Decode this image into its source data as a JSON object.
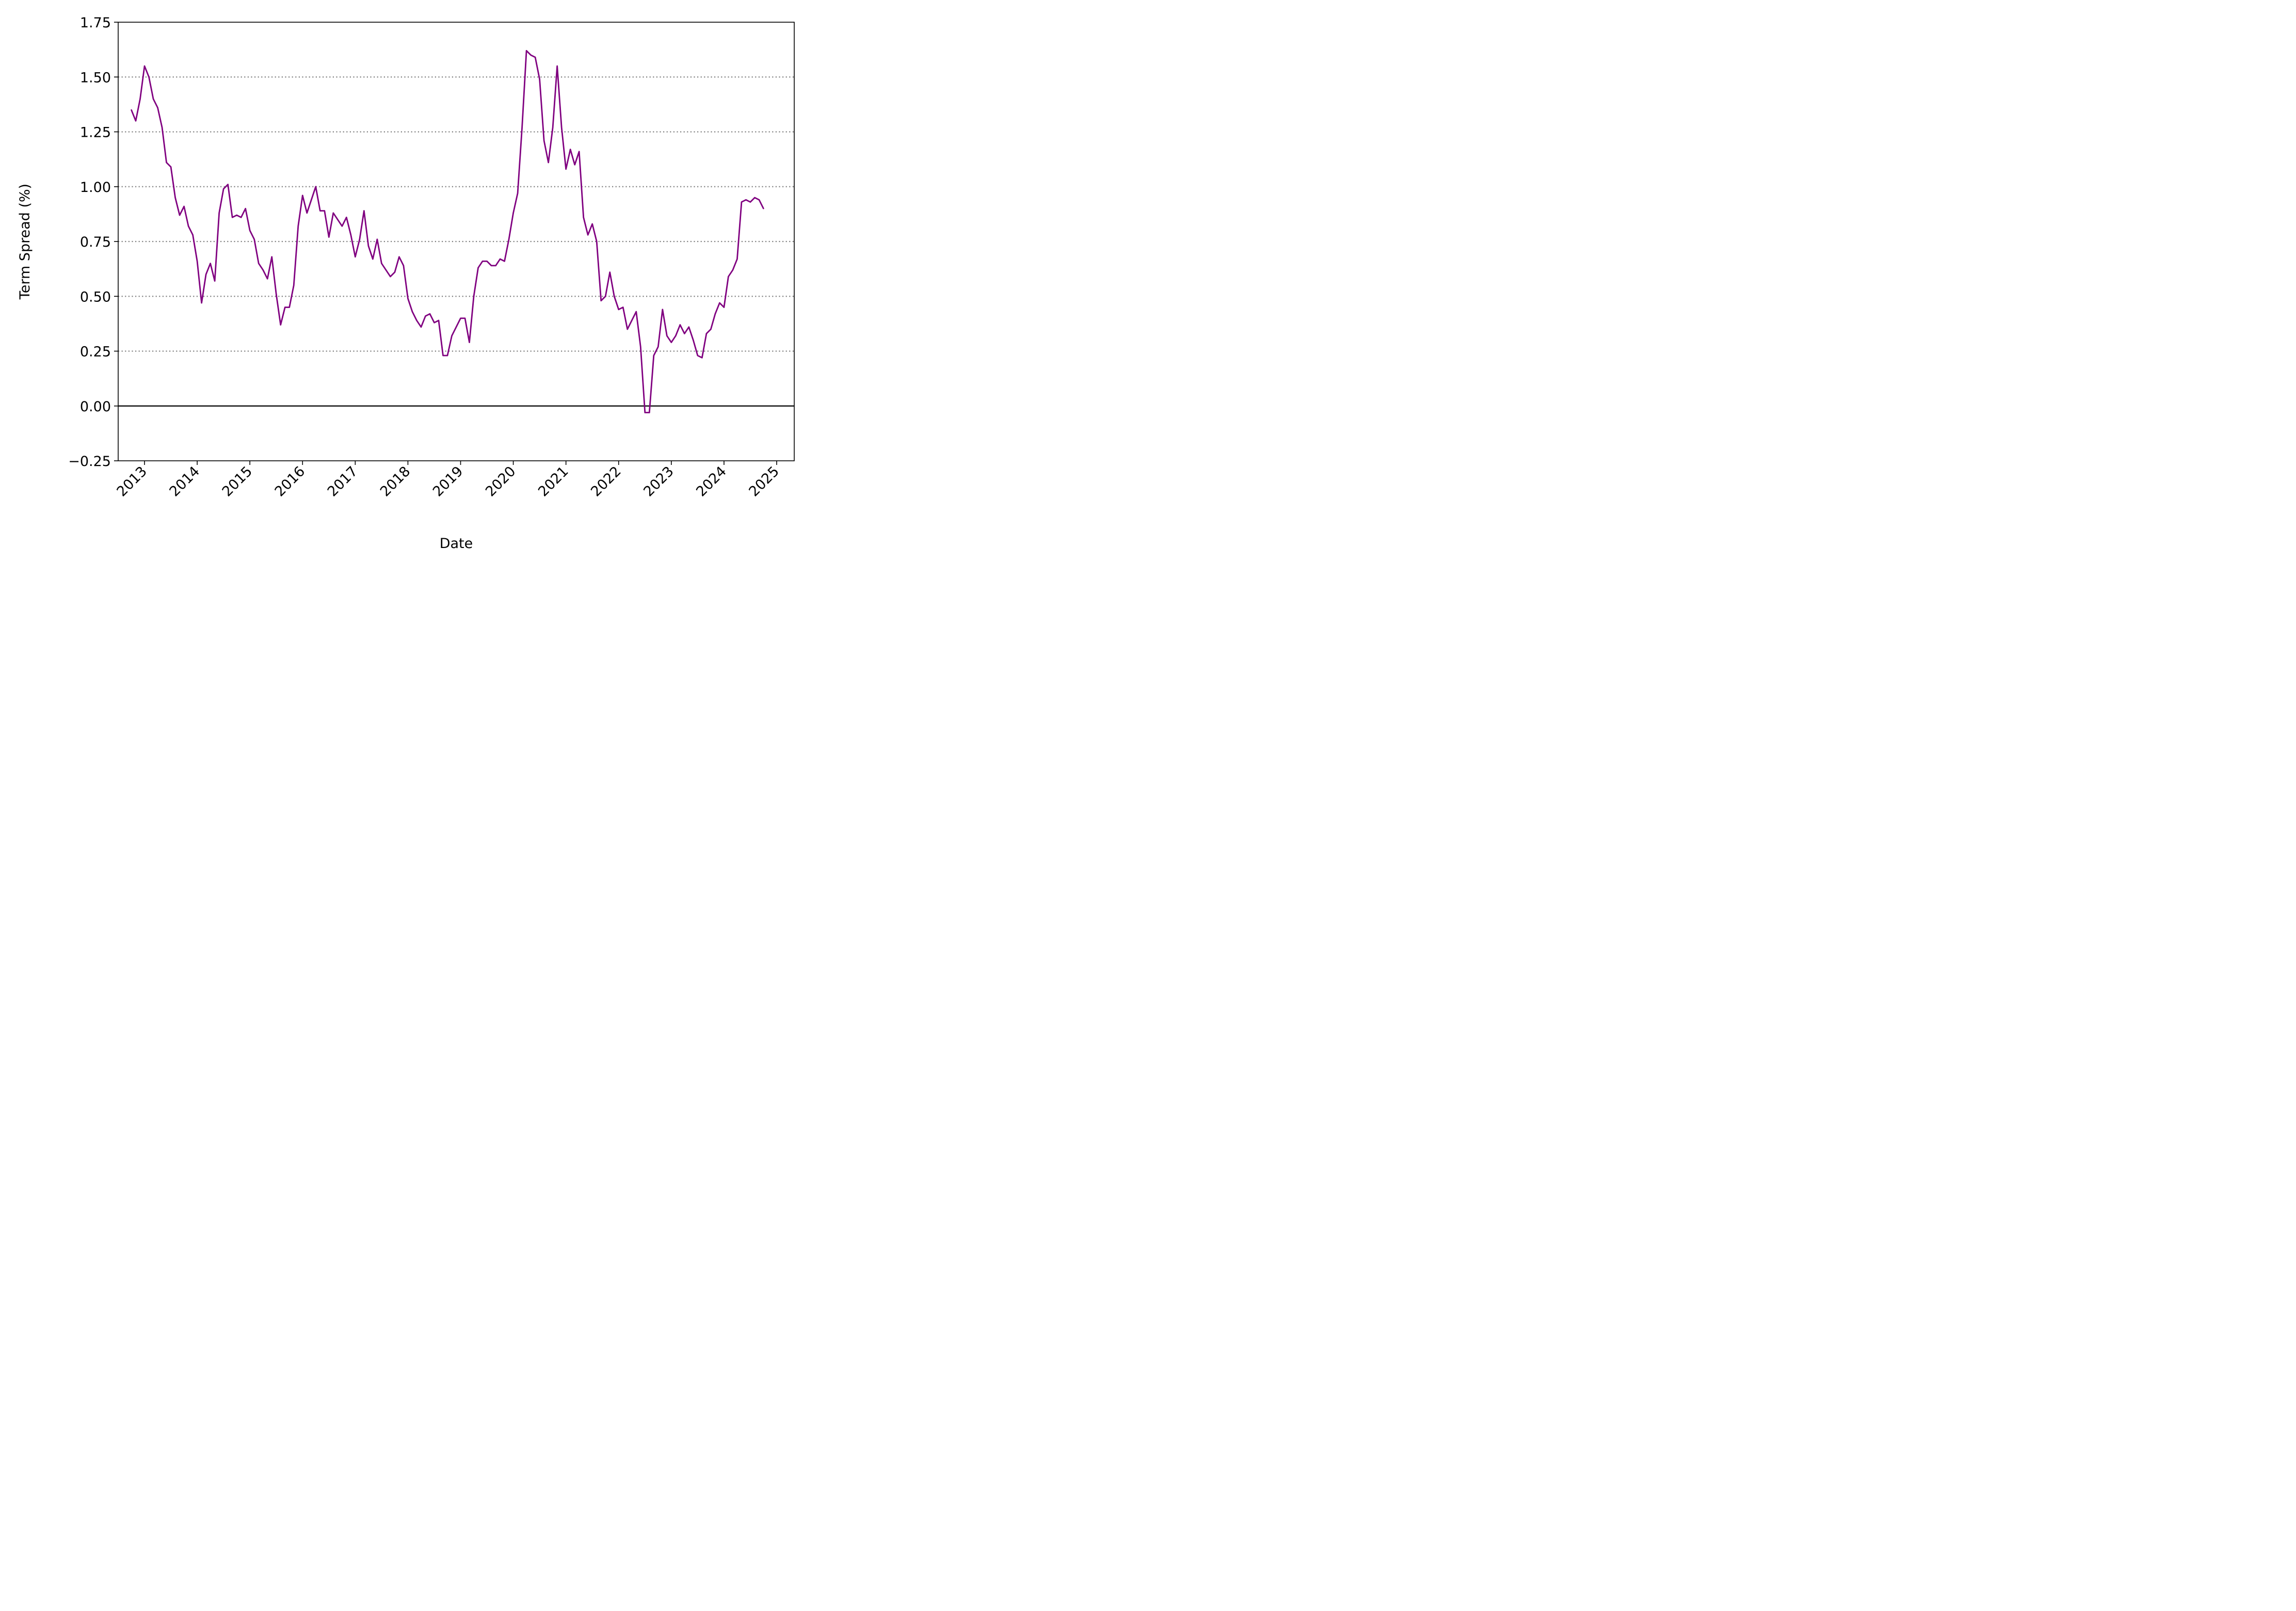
{
  "chart_data": {
    "type": "line",
    "title": "",
    "xlabel": "Date",
    "ylabel": "Term Spread (%)",
    "x_ticks": [
      "2013",
      "2014",
      "2015",
      "2016",
      "2017",
      "2018",
      "2019",
      "2020",
      "2021",
      "2022",
      "2023",
      "2024",
      "2025"
    ],
    "y_ticks": [
      "−0.25",
      "0.00",
      "0.25",
      "0.50",
      "0.75",
      "1.00",
      "1.25",
      "1.50",
      "1.75"
    ],
    "xlim": [
      "2012-07",
      "2025-05"
    ],
    "ylim": [
      -0.25,
      1.75
    ],
    "grid": "horizontal dotted",
    "reference_line": 0,
    "series": [
      {
        "color": "#800080",
        "points": [
          [
            "2012-10",
            1.35
          ],
          [
            "2012-11",
            1.3
          ],
          [
            "2012-12",
            1.4
          ],
          [
            "2013-01",
            1.55
          ],
          [
            "2013-02",
            1.5
          ],
          [
            "2013-03",
            1.4
          ],
          [
            "2013-04",
            1.36
          ],
          [
            "2013-05",
            1.27
          ],
          [
            "2013-06",
            1.11
          ],
          [
            "2013-07",
            1.09
          ],
          [
            "2013-08",
            0.95
          ],
          [
            "2013-09",
            0.87
          ],
          [
            "2013-10",
            0.91
          ],
          [
            "2013-11",
            0.82
          ],
          [
            "2013-12",
            0.78
          ],
          [
            "2014-01",
            0.66
          ],
          [
            "2014-02",
            0.47
          ],
          [
            "2014-03",
            0.6
          ],
          [
            "2014-04",
            0.65
          ],
          [
            "2014-05",
            0.57
          ],
          [
            "2014-06",
            0.88
          ],
          [
            "2014-07",
            0.99
          ],
          [
            "2014-08",
            1.01
          ],
          [
            "2014-09",
            0.86
          ],
          [
            "2014-10",
            0.87
          ],
          [
            "2014-11",
            0.86
          ],
          [
            "2014-12",
            0.9
          ],
          [
            "2015-01",
            0.8
          ],
          [
            "2015-02",
            0.76
          ],
          [
            "2015-03",
            0.65
          ],
          [
            "2015-04",
            0.62
          ],
          [
            "2015-05",
            0.58
          ],
          [
            "2015-06",
            0.68
          ],
          [
            "2015-07",
            0.51
          ],
          [
            "2015-08",
            0.37
          ],
          [
            "2015-09",
            0.45
          ],
          [
            "2015-10",
            0.45
          ],
          [
            "2015-11",
            0.55
          ],
          [
            "2015-12",
            0.82
          ],
          [
            "2016-01",
            0.96
          ],
          [
            "2016-02",
            0.88
          ],
          [
            "2016-03",
            0.94
          ],
          [
            "2016-04",
            1.0
          ],
          [
            "2016-05",
            0.89
          ],
          [
            "2016-06",
            0.89
          ],
          [
            "2016-07",
            0.77
          ],
          [
            "2016-08",
            0.88
          ],
          [
            "2016-09",
            0.85
          ],
          [
            "2016-10",
            0.82
          ],
          [
            "2016-11",
            0.86
          ],
          [
            "2016-12",
            0.78
          ],
          [
            "2017-01",
            0.68
          ],
          [
            "2017-02",
            0.76
          ],
          [
            "2017-03",
            0.89
          ],
          [
            "2017-04",
            0.73
          ],
          [
            "2017-05",
            0.67
          ],
          [
            "2017-06",
            0.76
          ],
          [
            "2017-07",
            0.65
          ],
          [
            "2017-08",
            0.62
          ],
          [
            "2017-09",
            0.59
          ],
          [
            "2017-10",
            0.61
          ],
          [
            "2017-11",
            0.68
          ],
          [
            "2017-12",
            0.64
          ],
          [
            "2018-01",
            0.49
          ],
          [
            "2018-02",
            0.43
          ],
          [
            "2018-03",
            0.39
          ],
          [
            "2018-04",
            0.36
          ],
          [
            "2018-05",
            0.41
          ],
          [
            "2018-06",
            0.42
          ],
          [
            "2018-07",
            0.38
          ],
          [
            "2018-08",
            0.39
          ],
          [
            "2018-09",
            0.23
          ],
          [
            "2018-10",
            0.23
          ],
          [
            "2018-11",
            0.32
          ],
          [
            "2018-12",
            0.36
          ],
          [
            "2019-01",
            0.4
          ],
          [
            "2019-02",
            0.4
          ],
          [
            "2019-03",
            0.29
          ],
          [
            "2019-04",
            0.5
          ],
          [
            "2019-05",
            0.63
          ],
          [
            "2019-06",
            0.66
          ],
          [
            "2019-07",
            0.66
          ],
          [
            "2019-08",
            0.64
          ],
          [
            "2019-09",
            0.64
          ],
          [
            "2019-10",
            0.67
          ],
          [
            "2019-11",
            0.66
          ],
          [
            "2019-12",
            0.76
          ],
          [
            "2020-01",
            0.88
          ],
          [
            "2020-02",
            0.97
          ],
          [
            "2020-03",
            1.27
          ],
          [
            "2020-04",
            1.62
          ],
          [
            "2020-05",
            1.6
          ],
          [
            "2020-06",
            1.59
          ],
          [
            "2020-07",
            1.49
          ],
          [
            "2020-08",
            1.21
          ],
          [
            "2020-09",
            1.11
          ],
          [
            "2020-10",
            1.27
          ],
          [
            "2020-11",
            1.55
          ],
          [
            "2020-12",
            1.27
          ],
          [
            "2021-01",
            1.08
          ],
          [
            "2021-02",
            1.17
          ],
          [
            "2021-03",
            1.1
          ],
          [
            "2021-04",
            1.16
          ],
          [
            "2021-05",
            0.86
          ],
          [
            "2021-06",
            0.78
          ],
          [
            "2021-07",
            0.83
          ],
          [
            "2021-08",
            0.75
          ],
          [
            "2021-09",
            0.48
          ],
          [
            "2021-10",
            0.5
          ],
          [
            "2021-11",
            0.61
          ],
          [
            "2021-12",
            0.5
          ],
          [
            "2022-01",
            0.44
          ],
          [
            "2022-02",
            0.45
          ],
          [
            "2022-03",
            0.35
          ],
          [
            "2022-04",
            0.39
          ],
          [
            "2022-05",
            0.43
          ],
          [
            "2022-06",
            0.27
          ],
          [
            "2022-07",
            -0.03
          ],
          [
            "2022-08",
            -0.03
          ],
          [
            "2022-09",
            0.23
          ],
          [
            "2022-10",
            0.27
          ],
          [
            "2022-11",
            0.44
          ],
          [
            "2022-12",
            0.32
          ],
          [
            "2023-01",
            0.29
          ],
          [
            "2023-02",
            0.32
          ],
          [
            "2023-03",
            0.37
          ],
          [
            "2023-04",
            0.33
          ],
          [
            "2023-05",
            0.36
          ],
          [
            "2023-06",
            0.3
          ],
          [
            "2023-07",
            0.23
          ],
          [
            "2023-08",
            0.22
          ],
          [
            "2023-09",
            0.33
          ],
          [
            "2023-10",
            0.35
          ],
          [
            "2023-11",
            0.42
          ],
          [
            "2023-12",
            0.47
          ],
          [
            "2024-01",
            0.45
          ],
          [
            "2024-02",
            0.59
          ],
          [
            "2024-03",
            0.62
          ],
          [
            "2024-04",
            0.67
          ],
          [
            "2024-05",
            0.93
          ],
          [
            "2024-06",
            0.94
          ],
          [
            "2024-07",
            0.93
          ],
          [
            "2024-08",
            0.95
          ],
          [
            "2024-09",
            0.94
          ],
          [
            "2024-10",
            0.9
          ]
        ]
      }
    ]
  }
}
